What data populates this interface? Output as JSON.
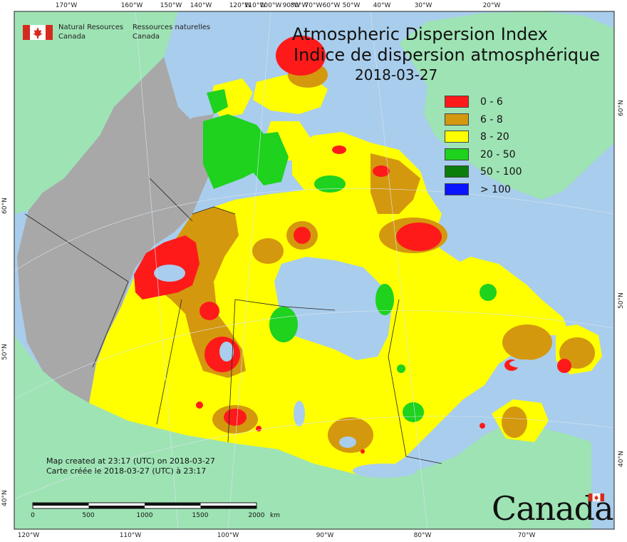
{
  "title": {
    "english": "Atmospheric Dispersion Index",
    "french": "Indice de dispersion atmosphérique",
    "date": "2018-03-27"
  },
  "agency": {
    "english": "Natural Resources\nCanada",
    "french": "Ressources naturelles\nCanada"
  },
  "legend": [
    {
      "label": "0 - 6",
      "color": "#ff1a1a"
    },
    {
      "label": "6 - 8",
      "color": "#d4980e"
    },
    {
      "label": "8 - 20",
      "color": "#ffff00"
    },
    {
      "label": "20 - 50",
      "color": "#1ed21e"
    },
    {
      "label": "50 - 100",
      "color": "#0b7d0b"
    },
    {
      "label": "> 100",
      "color": "#0a14ff"
    }
  ],
  "graticule": {
    "top": [
      "170°W",
      "160°W",
      "150°W",
      "140°W",
      "120°W",
      "110°W",
      "100°W",
      "90°W",
      "80°W",
      "70°W",
      "60°W",
      "50°W",
      "40°W",
      "30°W",
      "20°W"
    ],
    "bottom": [
      "120°W",
      "110°W",
      "100°W",
      "90°W",
      "80°W",
      "70°W"
    ],
    "left": [
      "60°N",
      "50°N",
      "40°N"
    ],
    "right": [
      "60°N",
      "50°N",
      "40°N"
    ]
  },
  "scale_bar": {
    "labels": [
      "0",
      "500",
      "1000",
      "1500",
      "2000"
    ],
    "unit": "km"
  },
  "credits": {
    "line1": "Map created at 23:17 (UTC) on 2018-03-27",
    "line2": "Carte créée le 2018-03-27 (UTC) à 23:17"
  },
  "wordmark": "Canada",
  "colors": {
    "ocean": "#a9cdec",
    "foreign_land": "#9ee3b4",
    "no_data": "#a8a8a8"
  }
}
